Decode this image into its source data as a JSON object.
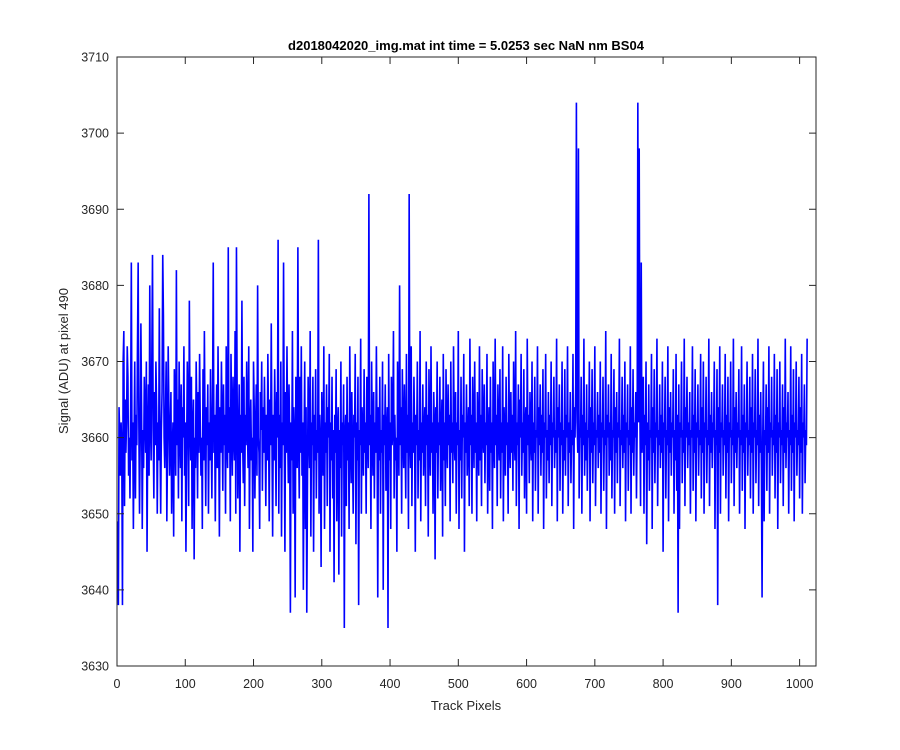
{
  "chart_data": {
    "type": "line",
    "title": "d2018042020_img.mat int time = 5.0253 sec  NaN nm BS04",
    "xlabel": "Track Pixels",
    "ylabel": "Signal (ADU) at pixel 490",
    "xlim": [
      0,
      1024
    ],
    "ylim": [
      3630,
      3710
    ],
    "x_ticks": [
      "0",
      "100",
      "200",
      "300",
      "400",
      "500",
      "600",
      "700",
      "800",
      "900",
      "1000"
    ],
    "y_ticks": [
      "3630",
      "3640",
      "3650",
      "3660",
      "3670",
      "3680",
      "3690",
      "3700",
      "3710"
    ],
    "grid": false,
    "line_color": "#0000ff",
    "series": [
      {
        "x_start": 1,
        "x_step": 1,
        "values": [
          3649,
          3638,
          3664,
          3660,
          3655,
          3662,
          3658,
          3653,
          3670,
          3674,
          3651,
          3665,
          3658,
          3662,
          3672,
          3668,
          3655,
          3660,
          3652,
          3664,
          3683,
          3657,
          3662,
          3648,
          3660,
          3670,
          3652,
          3663,
          3659,
          3672,
          3655,
          3662,
          3650,
          3660,
          3675,
          3664,
          3648,
          3661,
          3656,
          3668,
          3663,
          3658,
          3670,
          3645,
          3660,
          3667,
          3655,
          3680,
          3662,
          3657,
          3670,
          3684,
          3661,
          3652,
          3666,
          3659,
          3670,
          3664,
          3650,
          3662,
          3657,
          3677,
          3660,
          3650,
          3661,
          3666,
          3652,
          3676,
          3660,
          3656,
          3663,
          3670,
          3649,
          3658,
          3672,
          3664,
          3655,
          3660,
          3666,
          3650,
          3658,
          3662,
          3647,
          3669,
          3663,
          3655,
          3682,
          3659,
          3665,
          3652,
          3670,
          3661,
          3656,
          3667,
          3649,
          3664,
          3660,
          3672,
          3655,
          3662,
          3645,
          3658,
          3670,
          3664,
          3651,
          3678,
          3662,
          3657,
          3668,
          3648,
          3661,
          3665,
          3644,
          3660,
          3656,
          3670,
          3663,
          3652,
          3666,
          3658,
          3671,
          3662,
          3655,
          3660,
          3648,
          3669,
          3657,
          3674,
          3661,
          3651,
          3664,
          3659,
          3667,
          3650,
          3662,
          3657,
          3669,
          3660,
          3652,
          3665,
          3683,
          3658,
          3663,
          3649,
          3661,
          3667,
          3656,
          3672,
          3660,
          3647,
          3664,
          3658,
          3670,
          3662,
          3653,
          3667,
          3659,
          3663,
          3650,
          3672,
          3660,
          3656,
          3685,
          3658,
          3664,
          3649,
          3671,
          3662,
          3655,
          3668,
          3660,
          3657,
          3674,
          3650,
          3662,
          3666,
          3652,
          3660,
          3667,
          3645,
          3663,
          3658,
          3678,
          3660,
          3654,
          3668,
          3651,
          3663,
          3659,
          3670,
          3662,
          3656,
          3672,
          3648,
          3661,
          3665,
          3657,
          3660,
          3645,
          3670,
          3664,
          3652,
          3661,
          3667,
          3655,
          3680,
          3660,
          3658,
          3648,
          3666,
          3661,
          3670,
          3653,
          3664,
          3658,
          3668,
          3660,
          3651,
          3663,
          3657,
          3671,
          3662,
          3649,
          3665,
          3659,
          3675,
          3660,
          3647,
          3663,
          3657,
          3669,
          3661,
          3651,
          3666,
          3660,
          3686,
          3650,
          3663,
          3656,
          3670,
          3647,
          3662,
          3659,
          3683,
          3660,
          3645,
          3666,
          3658,
          3672,
          3661,
          3654,
          3667,
          3660,
          3637,
          3662,
          3657,
          3674,
          3650,
          3664,
          3660,
          3639,
          3668,
          3662,
          3656,
          3685,
          3660,
          3652,
          3668,
          3658,
          3672,
          3655,
          3662,
          3640,
          3659,
          3670,
          3648,
          3664,
          3660,
          3653,
          3668,
          3661,
          3656,
          3674,
          3647,
          3662,
          3659,
          3668,
          3645,
          3663,
          3657,
          3669,
          3652,
          3661,
          3658,
          3670,
          3650,
          3663,
          3659,
          3643,
          3666,
          3660,
          3655,
          3672,
          3648,
          3662,
          3658,
          3667,
          3651,
          3664,
          3660,
          3671,
          3645,
          3662,
          3657,
          3668,
          3652,
          3661,
          3641,
          3663,
          3658,
          3669,
          3649,
          3660,
          3664,
          3642,
          3661,
          3656,
          3670,
          3647,
          3662,
          3659,
          3667,
          3635,
          3660,
          3663,
          3651,
          3668,
          3657,
          3662,
          3648,
          3672,
          3660,
          3654,
          3666,
          3658,
          3650,
          3663,
          3660,
          3671,
          3646,
          3662,
          3657,
          3668,
          3638,
          3661,
          3659,
          3673,
          3650,
          3664,
          3660,
          3655,
          3669,
          3658,
          3662,
          3650,
          3668,
          3661,
          3656,
          3692,
          3659,
          3663,
          3648,
          3670,
          3660,
          3655,
          3666,
          3652,
          3662,
          3658,
          3672,
          3660,
          3639,
          3664,
          3657,
          3668,
          3650,
          3661,
          3658,
          3670,
          3640,
          3663,
          3659,
          3667,
          3653,
          3660,
          3664,
          3650,
          3671,
          3657,
          3662,
          3648,
          3668,
          3659,
          3661,
          3674,
          3652,
          3663,
          3657,
          3660,
          3645,
          3670,
          3662,
          3655,
          3680,
          3659,
          3664,
          3650,
          3669,
          3661,
          3656,
          3667,
          3660,
          3652,
          3671,
          3658,
          3663,
          3648,
          3665,
          3660,
          3656,
          3672,
          3651,
          3662,
          3658,
          3668,
          3660,
          3645,
          3663,
          3659,
          3670,
          3652,
          3661,
          3657,
          3674,
          3649,
          3662,
          3658,
          3667,
          3655,
          3660,
          3664,
          3651,
          3670,
          3659,
          3663,
          3647,
          3669,
          3660,
          3655,
          3672,
          3658,
          3662,
          3650,
          3666,
          3661,
          3644,
          3664,
          3658,
          3670,
          3652,
          3662,
          3659,
          3668,
          3653,
          3660,
          3665,
          3647,
          3671,
          3657,
          3662,
          3651,
          3669,
          3660,
          3656,
          3667,
          3659,
          3663,
          3649,
          3670,
          3658,
          3662,
          3654,
          3672,
          3660,
          3657,
          3666,
          3650,
          3662,
          3659,
          3674,
          3648,
          3661,
          3657,
          3668,
          3652,
          3663,
          3660,
          3671,
          3645,
          3662,
          3658,
          3667,
          3655,
          3660,
          3664,
          3651,
          3673,
          3659,
          3663,
          3650,
          3668,
          3661,
          3656,
          3670,
          3658,
          3662,
          3649,
          3666,
          3660,
          3655,
          3672,
          3657,
          3663,
          3651,
          3669,
          3661,
          3658,
          3667,
          3654,
          3662,
          3659,
          3671,
          3650,
          3660,
          3664,
          3653,
          3668,
          3658,
          3662,
          3648,
          3670,
          3660,
          3656,
          3673,
          3659,
          3663,
          3651,
          3667,
          3661,
          3657,
          3669,
          3652,
          3662,
          3658,
          3672,
          3649,
          3664,
          3660,
          3655,
          3668,
          3659,
          3662,
          3650,
          3671,
          3660,
          3656,
          3666,
          3658,
          3663,
          3653,
          3670,
          3661,
          3657,
          3674,
          3651,
          3662,
          3659,
          3667,
          3648,
          3665,
          3660,
          3671,
          3655,
          3662,
          3658,
          3669,
          3652,
          3661,
          3664,
          3650,
          3673,
          3659,
          3663,
          3654,
          3666,
          3660,
          3657,
          3670,
          3649,
          3662,
          3658,
          3668,
          3653,
          3661,
          3660,
          3672,
          3650,
          3664,
          3659,
          3667,
          3655,
          3663,
          3658,
          3669,
          3648,
          3662,
          3660,
          3671,
          3652,
          3661,
          3657,
          3666,
          3654,
          3663,
          3659,
          3670,
          3651,
          3662,
          3660,
          3668,
          3656,
          3661,
          3658,
          3673,
          3649,
          3664,
          3660,
          3667,
          3653,
          3662,
          3659,
          3670,
          3650,
          3661,
          3657,
          3669,
          3655,
          3663,
          3660,
          3672,
          3651,
          3662,
          3658,
          3666,
          3654,
          3661,
          3659,
          3671,
          3648,
          3664,
          3660,
          3667,
          3656,
          3662,
          3658,
          3670,
          3652,
          3661,
          3660,
          3668,
          3650,
          3663,
          3659,
          3673,
          3655,
          3662,
          3657,
          3667,
          3653,
          3661,
          3660,
          3670,
          3649,
          3664,
          3658,
          3669,
          3654,
          3662,
          3659,
          3672,
          3651,
          3661,
          3660,
          3666,
          3656,
          3663,
          3658,
          3670,
          3650,
          3662,
          3660,
          3668,
          3653,
          3661,
          3659,
          3674,
          3648,
          3663,
          3660,
          3667,
          3655,
          3662,
          3657,
          3671,
          3652,
          3661,
          3660,
          3669,
          3650,
          3664,
          3658,
          3666,
          3654,
          3662,
          3660,
          3673,
          3651,
          3661,
          3659,
          3668,
          3656,
          3663,
          3658,
          3670,
          3649,
          3662,
          3660,
          3667,
          3653,
          3661,
          3659,
          3672,
          3650,
          3664,
          3658,
          3669,
          3655,
          3662,
          3660,
          3666,
          3652,
          3661,
          3704,
          3662,
          3698,
          3664,
          3651,
          3672,
          3658,
          3661,
          3668,
          3650,
          3663,
          3659,
          3670,
          3646,
          3662,
          3657,
          3667,
          3653,
          3661,
          3660,
          3671,
          3648,
          3664,
          3658,
          3669,
          3654,
          3662,
          3660,
          3673,
          3651,
          3661,
          3659,
          3667,
          3656,
          3663,
          3658,
          3670,
          3645,
          3662,
          3660,
          3668,
          3652,
          3661,
          3659,
          3672,
          3649,
          3664,
          3658,
          3666,
          3655,
          3662,
          3660,
          3669,
          3650,
          3661,
          3657,
          3671,
          3653,
          3663,
          3659,
          3667,
          3648,
          3662,
          3660,
          3670,
          3654,
          3661,
          3658,
          3673,
          3651,
          3664,
          3660,
          3668,
          3656,
          3662,
          3659,
          3666,
          3650,
          3661,
          3660,
          3672,
          3653,
          3663,
          3658,
          3669,
          3649,
          3662,
          3660,
          3667,
          3655,
          3661,
          3659,
          3671,
          3652,
          3664,
          3658,
          3670,
          3650,
          3662,
          3660,
          3668,
          3654,
          3661,
          3659,
          3673,
          3651,
          3663,
          3658,
          3666,
          3656,
          3662,
          3660,
          3670,
          3648,
          3661,
          3659,
          3669,
          3653,
          3664,
          3658,
          3672,
          3650,
          3662,
          3660,
          3667,
          3655,
          3661,
          3659,
          3671,
          3652,
          3663,
          3658,
          3668,
          3649,
          3662,
          3660,
          3670,
          3654,
          3661,
          3659,
          3673,
          3651,
          3664,
          3658,
          3666,
          3656,
          3662,
          3660,
          3669,
          3650,
          3661,
          3659,
          3672,
          3653,
          3663,
          3658,
          3667,
          3648,
          3662,
          3660,
          3670,
          3655,
          3661,
          3659,
          3668,
          3652,
          3664,
          3658,
          3671,
          3650,
          3662,
          3660,
          3669,
          3654,
          3661,
          3659,
          3673,
          3651,
          3663,
          3658,
          3666,
          3656,
          3662,
          3660,
          3670,
          3649,
          3661,
          3659,
          3667,
          3653,
          3664,
          3658,
          3672,
          3650,
          3662,
          3660,
          3668,
          3655,
          3661,
          3659,
          3671,
          3652,
          3663,
          3658,
          3669,
          3648,
          3662,
          3660,
          3670,
          3654,
          3661,
          3659,
          3667,
          3651,
          3664,
          3658,
          3673,
          3656,
          3662,
          3660,
          3666,
          3650,
          3661,
          3659,
          3672,
          3653,
          3663,
          3658,
          3669,
          3649,
          3662,
          3660,
          3670,
          3655,
          3661,
          3659,
          3668,
          3652,
          3664,
          3658,
          3671,
          3650,
          3662,
          3660,
          3667,
          3654,
          3661,
          3659,
          3673
        ]
      }
    ],
    "spikes": [
      {
        "x": 8,
        "y": 3638
      },
      {
        "x": 31,
        "y": 3683
      },
      {
        "x": 67,
        "y": 3684
      },
      {
        "x": 175,
        "y": 3685
      },
      {
        "x": 295,
        "y": 3686
      },
      {
        "x": 278,
        "y": 3637
      },
      {
        "x": 397,
        "y": 3635
      },
      {
        "x": 428,
        "y": 3692
      },
      {
        "x": 673,
        "y": 3704
      },
      {
        "x": 676,
        "y": 3698
      },
      {
        "x": 768,
        "y": 3683
      },
      {
        "x": 822,
        "y": 3637
      },
      {
        "x": 880,
        "y": 3638
      },
      {
        "x": 945,
        "y": 3639
      },
      {
        "x": 1013,
        "y": 3640
      }
    ]
  }
}
